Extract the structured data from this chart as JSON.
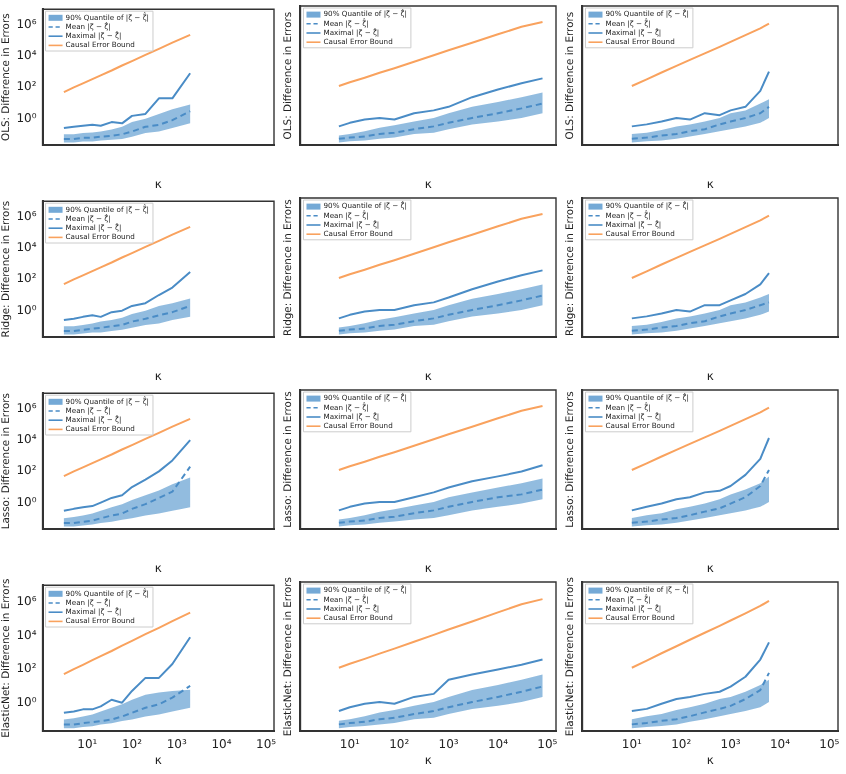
{
  "chart_data": [
    {
      "type": "line",
      "ylabel": "OLS: Difference in Errors",
      "xlabel": "κ",
      "log": "xy",
      "legend": "top left",
      "tick_labels": "y",
      "xlim": [
        1,
        150000
      ],
      "ylim": [
        0.02,
        10000000
      ],
      "xticks": [
        {
          "value": 10,
          "label": null
        },
        {
          "value": 100,
          "label": null
        },
        {
          "value": 1000,
          "label": null
        },
        {
          "value": 10000,
          "label": null
        },
        {
          "value": 100000,
          "label": null
        }
      ],
      "yticks": [
        {
          "value": 1,
          "label": "10⁰"
        },
        {
          "value": 100,
          "label": "10²"
        },
        {
          "value": 10000,
          "label": "10⁴"
        },
        {
          "value": 1000000,
          "label": "10⁶"
        }
      ],
      "x": [
        3,
        5,
        8,
        13,
        20,
        35,
        60,
        100,
        200,
        400,
        800,
        2000
      ],
      "series": [
        {
          "name": "90% Quantile of |ζ − ζ̂|",
          "color": "#74a9d6",
          "values": [
            null,
            null,
            null,
            null,
            null,
            null,
            null,
            null,
            null,
            null,
            null,
            null
          ],
          "lower": [
            0.03,
            0.03,
            0.035,
            0.035,
            0.04,
            0.045,
            0.05,
            0.07,
            0.12,
            0.15,
            0.25,
            0.5
          ],
          "upper": [
            0.1,
            0.1,
            0.12,
            0.13,
            0.15,
            0.2,
            0.3,
            0.6,
            1,
            2,
            4,
            8
          ]
        },
        {
          "name": "Mean |ζ − ζ̂|",
          "color": "#4a8cc6",
          "line_style": "dashed",
          "values": [
            0.05,
            0.05,
            0.06,
            0.06,
            0.07,
            0.08,
            0.1,
            0.15,
            0.3,
            0.4,
            0.8,
            3
          ]
        },
        {
          "name": "Maximal |ζ − ζ̂|",
          "color": "#4a8cc6",
          "values": [
            0.25,
            0.3,
            0.35,
            0.4,
            0.35,
            0.6,
            0.5,
            1.5,
            2,
            20,
            20,
            800
          ]
        },
        {
          "name": "Causal Error Bound",
          "color": "#f9a25e",
          "values": [
            50,
            100,
            180,
            340,
            590,
            1200,
            2500,
            4800,
            12000,
            29000,
            72000,
            230000
          ]
        }
      ]
    },
    {
      "type": "line",
      "ylabel": "OLS: Difference in Errors",
      "xlabel": "κ",
      "log": "xy",
      "legend": "top left",
      "tick_labels": false,
      "xlim": [
        1,
        150000
      ],
      "ylim": [
        0.02,
        10000000
      ],
      "xticks": [
        {
          "value": 10,
          "label": null
        },
        {
          "value": 100,
          "label": null
        },
        {
          "value": 1000,
          "label": null
        },
        {
          "value": 10000,
          "label": null
        },
        {
          "value": 100000,
          "label": null
        }
      ],
      "yticks": [
        {
          "value": 1,
          "label": null
        },
        {
          "value": 100,
          "label": null
        },
        {
          "value": 10000,
          "label": null
        },
        {
          "value": 1000000,
          "label": null
        }
      ],
      "x": [
        6,
        10,
        20,
        40,
        80,
        200,
        500,
        1000,
        3000,
        10000,
        30000,
        80000
      ],
      "series": [
        {
          "name": "90% Quantile of |ζ − ζ̂|",
          "color": "#74a9d6",
          "values": [
            null,
            null,
            null,
            null,
            null,
            null,
            null,
            null,
            null,
            null,
            null,
            null
          ],
          "lower": [
            0.03,
            0.035,
            0.04,
            0.05,
            0.06,
            0.1,
            0.12,
            0.2,
            0.4,
            0.6,
            1,
            2
          ],
          "upper": [
            0.08,
            0.1,
            0.15,
            0.25,
            0.35,
            0.6,
            1,
            2,
            5,
            10,
            20,
            40
          ]
        },
        {
          "name": "Mean |ζ − ζ̂|",
          "color": "#4a8cc6",
          "line_style": "dashed",
          "values": [
            0.05,
            0.06,
            0.07,
            0.1,
            0.12,
            0.2,
            0.3,
            0.5,
            1,
            2,
            4,
            8
          ]
        },
        {
          "name": "Maximal |ζ − ζ̂|",
          "color": "#4a8cc6",
          "values": [
            0.3,
            0.5,
            0.8,
            1,
            0.8,
            2,
            3,
            5,
            20,
            60,
            150,
            300
          ]
        },
        {
          "name": "Causal Error Bound",
          "color": "#f9a25e",
          "values": [
            100,
            170,
            330,
            670,
            1300,
            3300,
            8300,
            17000,
            50000,
            170000,
            500000,
            1000000
          ]
        }
      ]
    },
    {
      "type": "line",
      "ylabel": "OLS: Difference in Errors",
      "xlabel": "κ",
      "log": "xy",
      "legend": "top left",
      "tick_labels": false,
      "xlim": [
        1,
        150000
      ],
      "ylim": [
        0.02,
        10000000
      ],
      "xticks": [
        {
          "value": 10,
          "label": null
        },
        {
          "value": 100,
          "label": null
        },
        {
          "value": 1000,
          "label": null
        },
        {
          "value": 10000,
          "label": null
        },
        {
          "value": 100000,
          "label": null
        }
      ],
      "yticks": [
        {
          "value": 1,
          "label": null
        },
        {
          "value": 100,
          "label": null
        },
        {
          "value": 10000,
          "label": null
        },
        {
          "value": 1000000,
          "label": null
        }
      ],
      "x": [
        10,
        20,
        40,
        80,
        150,
        300,
        600,
        1000,
        2000,
        4000,
        6000
      ],
      "series": [
        {
          "name": "90% Quantile of |ζ − ζ̂|",
          "color": "#74a9d6",
          "values": [
            null,
            null,
            null,
            null,
            null,
            null,
            null,
            null,
            null,
            null,
            null
          ],
          "lower": [
            0.03,
            0.035,
            0.04,
            0.05,
            0.07,
            0.1,
            0.15,
            0.2,
            0.3,
            0.5,
            1
          ],
          "upper": [
            0.1,
            0.12,
            0.18,
            0.3,
            0.4,
            0.6,
            1,
            2,
            3,
            8,
            15
          ]
        },
        {
          "name": "Mean |ζ − ζ̂|",
          "color": "#4a8cc6",
          "line_style": "dashed",
          "values": [
            0.05,
            0.06,
            0.08,
            0.1,
            0.15,
            0.2,
            0.4,
            0.6,
            1,
            2,
            5
          ]
        },
        {
          "name": "Maximal |ζ − ζ̂|",
          "color": "#4a8cc6",
          "values": [
            0.3,
            0.4,
            0.6,
            1,
            0.8,
            2,
            1.5,
            3,
            5,
            50,
            800
          ]
        },
        {
          "name": "Causal Error Bound",
          "color": "#f9a25e",
          "values": [
            100,
            260,
            700,
            1800,
            4300,
            11000,
            28000,
            57000,
            150000,
            400000,
            800000
          ]
        }
      ]
    },
    {
      "type": "line",
      "ylabel": "Ridge: Difference in Errors",
      "xlabel": "κ",
      "log": "xy",
      "legend": "top left",
      "tick_labels": "y",
      "xlim": [
        1,
        150000
      ],
      "ylim": [
        0.02,
        10000000
      ],
      "xticks": [
        {
          "value": 10,
          "label": null
        },
        {
          "value": 100,
          "label": null
        },
        {
          "value": 1000,
          "label": null
        },
        {
          "value": 10000,
          "label": null
        },
        {
          "value": 100000,
          "label": null
        }
      ],
      "yticks": [
        {
          "value": 1,
          "label": "10⁰"
        },
        {
          "value": 100,
          "label": "10²"
        },
        {
          "value": 10000,
          "label": "10⁴"
        },
        {
          "value": 1000000,
          "label": "10⁶"
        }
      ],
      "x": [
        3,
        5,
        8,
        13,
        20,
        35,
        60,
        100,
        200,
        400,
        800,
        2000
      ],
      "series": [
        {
          "name": "90% Quantile of |ζ − ζ̂|",
          "color": "#74a9d6",
          "values": [
            null,
            null,
            null,
            null,
            null,
            null,
            null,
            null,
            null,
            null,
            null,
            null
          ],
          "lower": [
            0.03,
            0.03,
            0.035,
            0.04,
            0.04,
            0.05,
            0.06,
            0.08,
            0.12,
            0.15,
            0.25,
            0.4
          ],
          "upper": [
            0.1,
            0.1,
            0.12,
            0.15,
            0.2,
            0.25,
            0.35,
            0.6,
            1,
            2,
            3,
            6
          ]
        },
        {
          "name": "Mean |ζ − ζ̂|",
          "color": "#4a8cc6",
          "line_style": "dashed",
          "values": [
            0.05,
            0.05,
            0.06,
            0.07,
            0.08,
            0.1,
            0.12,
            0.2,
            0.3,
            0.5,
            0.8,
            2
          ]
        },
        {
          "name": "Maximal |ζ − ζ̂|",
          "color": "#4a8cc6",
          "values": [
            0.25,
            0.3,
            0.4,
            0.5,
            0.4,
            0.8,
            1,
            2,
            3,
            10,
            30,
            300
          ]
        },
        {
          "name": "Causal Error Bound",
          "color": "#f9a25e",
          "values": [
            50,
            100,
            180,
            340,
            590,
            1200,
            2500,
            4800,
            12000,
            29000,
            72000,
            230000
          ]
        }
      ]
    },
    {
      "type": "line",
      "ylabel": "Ridge: Difference in Errors",
      "xlabel": "κ",
      "log": "xy",
      "legend": "top left",
      "tick_labels": false,
      "xlim": [
        1,
        150000
      ],
      "ylim": [
        0.02,
        10000000
      ],
      "xticks": [
        {
          "value": 10,
          "label": null
        },
        {
          "value": 100,
          "label": null
        },
        {
          "value": 1000,
          "label": null
        },
        {
          "value": 10000,
          "label": null
        },
        {
          "value": 100000,
          "label": null
        }
      ],
      "yticks": [
        {
          "value": 1,
          "label": null
        },
        {
          "value": 100,
          "label": null
        },
        {
          "value": 10000,
          "label": null
        },
        {
          "value": 1000000,
          "label": null
        }
      ],
      "x": [
        6,
        10,
        20,
        40,
        80,
        200,
        500,
        1000,
        3000,
        10000,
        30000,
        80000
      ],
      "series": [
        {
          "name": "90% Quantile of |ζ − ζ̂|",
          "color": "#74a9d6",
          "values": [
            null,
            null,
            null,
            null,
            null,
            null,
            null,
            null,
            null,
            null,
            null,
            null
          ],
          "lower": [
            0.03,
            0.035,
            0.04,
            0.05,
            0.06,
            0.1,
            0.12,
            0.2,
            0.4,
            0.6,
            1,
            2
          ],
          "upper": [
            0.08,
            0.1,
            0.15,
            0.25,
            0.35,
            0.6,
            1,
            2,
            5,
            10,
            20,
            40
          ]
        },
        {
          "name": "Mean |ζ − ζ̂|",
          "color": "#4a8cc6",
          "line_style": "dashed",
          "values": [
            0.05,
            0.06,
            0.07,
            0.1,
            0.12,
            0.2,
            0.3,
            0.5,
            1,
            2,
            4,
            8
          ]
        },
        {
          "name": "Maximal |ζ − ζ̂|",
          "color": "#4a8cc6",
          "values": [
            0.3,
            0.5,
            0.8,
            1,
            1,
            2,
            3,
            6,
            20,
            60,
            150,
            300
          ]
        },
        {
          "name": "Causal Error Bound",
          "color": "#f9a25e",
          "values": [
            100,
            170,
            330,
            670,
            1300,
            3300,
            8300,
            17000,
            50000,
            170000,
            500000,
            1000000
          ]
        }
      ]
    },
    {
      "type": "line",
      "ylabel": "Ridge: Difference in Errors",
      "xlabel": "κ",
      "log": "xy",
      "legend": "top left",
      "tick_labels": false,
      "xlim": [
        1,
        150000
      ],
      "ylim": [
        0.02,
        10000000
      ],
      "xticks": [
        {
          "value": 10,
          "label": null
        },
        {
          "value": 100,
          "label": null
        },
        {
          "value": 1000,
          "label": null
        },
        {
          "value": 10000,
          "label": null
        },
        {
          "value": 100000,
          "label": null
        }
      ],
      "yticks": [
        {
          "value": 1,
          "label": null
        },
        {
          "value": 100,
          "label": null
        },
        {
          "value": 10000,
          "label": null
        },
        {
          "value": 1000000,
          "label": null
        }
      ],
      "x": [
        10,
        20,
        40,
        80,
        150,
        300,
        600,
        1000,
        2000,
        4000,
        6000
      ],
      "series": [
        {
          "name": "90% Quantile of |ζ − ζ̂|",
          "color": "#74a9d6",
          "values": [
            null,
            null,
            null,
            null,
            null,
            null,
            null,
            null,
            null,
            null,
            null
          ],
          "lower": [
            0.03,
            0.035,
            0.04,
            0.05,
            0.07,
            0.1,
            0.15,
            0.2,
            0.3,
            0.5,
            0.8
          ],
          "upper": [
            0.1,
            0.12,
            0.18,
            0.3,
            0.4,
            0.6,
            1,
            2,
            3,
            6,
            10
          ]
        },
        {
          "name": "Mean |ζ − ζ̂|",
          "color": "#4a8cc6",
          "line_style": "dashed",
          "values": [
            0.05,
            0.06,
            0.08,
            0.1,
            0.15,
            0.2,
            0.4,
            0.6,
            1,
            2,
            3
          ]
        },
        {
          "name": "Maximal |ζ − ζ̂|",
          "color": "#4a8cc6",
          "values": [
            0.3,
            0.4,
            0.6,
            1,
            0.8,
            2,
            2,
            4,
            10,
            40,
            200
          ]
        },
        {
          "name": "Causal Error Bound",
          "color": "#f9a25e",
          "values": [
            100,
            260,
            700,
            1800,
            4300,
            11000,
            28000,
            57000,
            150000,
            400000,
            800000
          ]
        }
      ]
    },
    {
      "type": "line",
      "ylabel": "Lasso: Difference in Errors",
      "xlabel": "κ",
      "log": "xy",
      "legend": "top left",
      "tick_labels": "y",
      "xlim": [
        1,
        150000
      ],
      "ylim": [
        0.02,
        10000000
      ],
      "xticks": [
        {
          "value": 10,
          "label": null
        },
        {
          "value": 100,
          "label": null
        },
        {
          "value": 1000,
          "label": null
        },
        {
          "value": 10000,
          "label": null
        },
        {
          "value": 100000,
          "label": null
        }
      ],
      "yticks": [
        {
          "value": 1,
          "label": "10⁰"
        },
        {
          "value": 100,
          "label": "10²"
        },
        {
          "value": 10000,
          "label": "10⁴"
        },
        {
          "value": 1000000,
          "label": "10⁶"
        }
      ],
      "x": [
        3,
        5,
        8,
        13,
        20,
        35,
        60,
        100,
        200,
        400,
        800,
        2000
      ],
      "series": [
        {
          "name": "90% Quantile of |ζ − ζ̂|",
          "color": "#74a9d6",
          "values": [
            null,
            null,
            null,
            null,
            null,
            null,
            null,
            null,
            null,
            null,
            null,
            null
          ],
          "lower": [
            0.03,
            0.03,
            0.035,
            0.04,
            0.05,
            0.06,
            0.08,
            0.1,
            0.15,
            0.2,
            0.3,
            0.5
          ],
          "upper": [
            0.1,
            0.12,
            0.15,
            0.2,
            0.3,
            0.5,
            0.8,
            1.5,
            3,
            6,
            15,
            40
          ]
        },
        {
          "name": "Mean |ζ − ζ̂|",
          "color": "#4a8cc6",
          "line_style": "dashed",
          "values": [
            0.05,
            0.05,
            0.06,
            0.07,
            0.1,
            0.15,
            0.2,
            0.4,
            0.8,
            2,
            5,
            200
          ]
        },
        {
          "name": "Maximal |ζ − ζ̂|",
          "color": "#4a8cc6",
          "values": [
            0.3,
            0.4,
            0.5,
            0.6,
            1,
            2,
            3,
            10,
            30,
            100,
            500,
            10000
          ]
        },
        {
          "name": "Causal Error Bound",
          "color": "#f9a25e",
          "values": [
            50,
            100,
            180,
            340,
            590,
            1200,
            2500,
            4800,
            12000,
            29000,
            72000,
            230000
          ]
        }
      ]
    },
    {
      "type": "line",
      "ylabel": "Lasso: Difference in Errors",
      "xlabel": "κ",
      "log": "xy",
      "legend": "top left",
      "tick_labels": false,
      "xlim": [
        1,
        150000
      ],
      "ylim": [
        0.02,
        10000000
      ],
      "xticks": [
        {
          "value": 10,
          "label": null
        },
        {
          "value": 100,
          "label": null
        },
        {
          "value": 1000,
          "label": null
        },
        {
          "value": 10000,
          "label": null
        },
        {
          "value": 100000,
          "label": null
        }
      ],
      "yticks": [
        {
          "value": 1,
          "label": null
        },
        {
          "value": 100,
          "label": null
        },
        {
          "value": 10000,
          "label": null
        },
        {
          "value": 1000000,
          "label": null
        }
      ],
      "x": [
        6,
        10,
        20,
        40,
        80,
        200,
        500,
        1000,
        3000,
        10000,
        30000,
        80000
      ],
      "series": [
        {
          "name": "90% Quantile of |ζ − ζ̂|",
          "color": "#74a9d6",
          "values": [
            null,
            null,
            null,
            null,
            null,
            null,
            null,
            null,
            null,
            null,
            null,
            null
          ],
          "lower": [
            0.03,
            0.035,
            0.04,
            0.05,
            0.06,
            0.08,
            0.1,
            0.15,
            0.3,
            0.5,
            0.8,
            1.5
          ],
          "upper": [
            0.08,
            0.1,
            0.15,
            0.25,
            0.35,
            0.6,
            1,
            2,
            4,
            8,
            15,
            30
          ]
        },
        {
          "name": "Mean |ζ − ζ̂|",
          "color": "#4a8cc6",
          "line_style": "dashed",
          "values": [
            0.05,
            0.06,
            0.07,
            0.1,
            0.12,
            0.2,
            0.3,
            0.5,
            1,
            2,
            3,
            6
          ]
        },
        {
          "name": "Maximal |ζ − ζ̂|",
          "color": "#4a8cc6",
          "values": [
            0.3,
            0.5,
            0.8,
            1,
            1,
            2,
            4,
            8,
            20,
            40,
            80,
            200
          ]
        },
        {
          "name": "Causal Error Bound",
          "color": "#f9a25e",
          "values": [
            100,
            170,
            330,
            670,
            1300,
            3300,
            8300,
            17000,
            50000,
            170000,
            500000,
            1000000
          ]
        }
      ]
    },
    {
      "type": "line",
      "ylabel": "Lasso: Difference in Errors",
      "xlabel": "κ",
      "log": "xy",
      "legend": "top left",
      "tick_labels": false,
      "xlim": [
        1,
        150000
      ],
      "ylim": [
        0.02,
        10000000
      ],
      "xticks": [
        {
          "value": 10,
          "label": null
        },
        {
          "value": 100,
          "label": null
        },
        {
          "value": 1000,
          "label": null
        },
        {
          "value": 10000,
          "label": null
        },
        {
          "value": 100000,
          "label": null
        }
      ],
      "yticks": [
        {
          "value": 1,
          "label": null
        },
        {
          "value": 100,
          "label": null
        },
        {
          "value": 10000,
          "label": null
        },
        {
          "value": 1000000,
          "label": null
        }
      ],
      "x": [
        10,
        20,
        40,
        80,
        150,
        300,
        600,
        1000,
        2000,
        4000,
        6000
      ],
      "series": [
        {
          "name": "90% Quantile of |ζ − ζ̂|",
          "color": "#74a9d6",
          "values": [
            null,
            null,
            null,
            null,
            null,
            null,
            null,
            null,
            null,
            null,
            null
          ],
          "lower": [
            0.03,
            0.035,
            0.04,
            0.05,
            0.07,
            0.1,
            0.15,
            0.2,
            0.3,
            0.5,
            1
          ],
          "upper": [
            0.1,
            0.15,
            0.2,
            0.35,
            0.5,
            0.8,
            1.5,
            3,
            6,
            15,
            40
          ]
        },
        {
          "name": "Mean |ζ − ζ̂|",
          "color": "#4a8cc6",
          "line_style": "dashed",
          "values": [
            0.05,
            0.06,
            0.08,
            0.1,
            0.15,
            0.25,
            0.4,
            0.8,
            2,
            10,
            100
          ]
        },
        {
          "name": "Maximal |ζ − ζ̂|",
          "color": "#4a8cc6",
          "values": [
            0.3,
            0.5,
            0.8,
            1.5,
            2,
            4,
            5,
            10,
            50,
            500,
            10000
          ]
        },
        {
          "name": "Causal Error Bound",
          "color": "#f9a25e",
          "values": [
            100,
            260,
            700,
            1800,
            4300,
            11000,
            28000,
            57000,
            150000,
            400000,
            800000
          ]
        }
      ]
    },
    {
      "type": "line",
      "ylabel": "ElasticNet: Difference in Errors",
      "xlabel": "κ",
      "log": "xy",
      "legend": "top left",
      "xlim": [
        1,
        150000
      ],
      "ylim": [
        0.02,
        10000000
      ],
      "xticks": [
        {
          "value": 10,
          "label": "10¹"
        },
        {
          "value": 100,
          "label": "10²"
        },
        {
          "value": 1000,
          "label": "10³"
        },
        {
          "value": 10000,
          "label": "10⁴"
        },
        {
          "value": 100000,
          "label": "10⁵"
        }
      ],
      "yticks": [
        {
          "value": 1,
          "label": "10⁰"
        },
        {
          "value": 100,
          "label": "10²"
        },
        {
          "value": 10000,
          "label": "10⁴"
        },
        {
          "value": 1000000,
          "label": "10⁶"
        }
      ],
      "x": [
        3,
        5,
        8,
        13,
        20,
        35,
        60,
        100,
        200,
        400,
        800,
        2000
      ],
      "series": [
        {
          "name": "90% Quantile of |ζ − ζ̂|",
          "color": "#74a9d6",
          "values": [
            null,
            null,
            null,
            null,
            null,
            null,
            null,
            null,
            null,
            null,
            null,
            null
          ],
          "lower": [
            0.03,
            0.03,
            0.035,
            0.04,
            0.05,
            0.06,
            0.08,
            0.1,
            0.15,
            0.2,
            0.3,
            0.5
          ],
          "upper": [
            0.1,
            0.12,
            0.15,
            0.2,
            0.3,
            0.5,
            0.8,
            1.5,
            3,
            4,
            5,
            6
          ]
        },
        {
          "name": "Mean |ζ − ζ̂|",
          "color": "#4a8cc6",
          "line_style": "dashed",
          "values": [
            0.05,
            0.05,
            0.06,
            0.07,
            0.08,
            0.1,
            0.15,
            0.25,
            0.5,
            0.8,
            2,
            10
          ]
        },
        {
          "name": "Maximal |ζ − ζ̂|",
          "color": "#4a8cc6",
          "values": [
            0.25,
            0.3,
            0.4,
            0.4,
            0.6,
            1.5,
            1,
            5,
            30,
            30,
            200,
            8000
          ]
        },
        {
          "name": "Causal Error Bound",
          "color": "#f9a25e",
          "values": [
            50,
            100,
            180,
            340,
            590,
            1200,
            2500,
            4800,
            12000,
            29000,
            72000,
            230000
          ]
        }
      ]
    },
    {
      "type": "line",
      "ylabel": "ElasticNet: Difference in Errors",
      "xlabel": "κ",
      "log": "xy",
      "legend": "top left",
      "tick_labels": "x",
      "xlim": [
        1,
        150000
      ],
      "ylim": [
        0.02,
        10000000
      ],
      "xticks": [
        {
          "value": 10,
          "label": "10¹"
        },
        {
          "value": 100,
          "label": "10²"
        },
        {
          "value": 1000,
          "label": "10³"
        },
        {
          "value": 10000,
          "label": "10⁴"
        },
        {
          "value": 100000,
          "label": "10⁵"
        }
      ],
      "yticks": [
        {
          "value": 1,
          "label": null
        },
        {
          "value": 100,
          "label": null
        },
        {
          "value": 10000,
          "label": null
        },
        {
          "value": 1000000,
          "label": null
        }
      ],
      "x": [
        6,
        10,
        20,
        40,
        80,
        200,
        500,
        1000,
        3000,
        10000,
        30000,
        80000
      ],
      "series": [
        {
          "name": "90% Quantile of |ζ − ζ̂|",
          "color": "#74a9d6",
          "values": [
            null,
            null,
            null,
            null,
            null,
            null,
            null,
            null,
            null,
            null,
            null,
            null
          ],
          "lower": [
            0.03,
            0.035,
            0.04,
            0.05,
            0.06,
            0.1,
            0.12,
            0.2,
            0.4,
            0.6,
            1,
            2
          ],
          "upper": [
            0.08,
            0.1,
            0.15,
            0.25,
            0.35,
            0.6,
            1,
            2,
            5,
            10,
            20,
            40
          ]
        },
        {
          "name": "Mean |ζ − ζ̂|",
          "color": "#4a8cc6",
          "line_style": "dashed",
          "values": [
            0.05,
            0.06,
            0.07,
            0.1,
            0.12,
            0.2,
            0.3,
            0.5,
            1,
            2,
            4,
            8
          ]
        },
        {
          "name": "Maximal |ζ − ζ̂|",
          "color": "#4a8cc6",
          "values": [
            0.3,
            0.5,
            0.8,
            1,
            0.8,
            2,
            3,
            20,
            40,
            80,
            150,
            300
          ]
        },
        {
          "name": "Causal Error Bound",
          "color": "#f9a25e",
          "values": [
            100,
            170,
            330,
            670,
            1300,
            3300,
            8300,
            17000,
            50000,
            170000,
            500000,
            1000000
          ]
        }
      ]
    },
    {
      "type": "line",
      "ylabel": "ElasticNet: Difference in Errors",
      "xlabel": "κ",
      "log": "xy",
      "legend": "top left",
      "tick_labels": "x",
      "xlim": [
        1,
        150000
      ],
      "ylim": [
        0.02,
        10000000
      ],
      "xticks": [
        {
          "value": 10,
          "label": "10¹"
        },
        {
          "value": 100,
          "label": "10²"
        },
        {
          "value": 1000,
          "label": "10³"
        },
        {
          "value": 10000,
          "label": "10⁴"
        },
        {
          "value": 100000,
          "label": "10⁵"
        }
      ],
      "yticks": [
        {
          "value": 1,
          "label": null
        },
        {
          "value": 100,
          "label": null
        },
        {
          "value": 10000,
          "label": null
        },
        {
          "value": 1000000,
          "label": null
        }
      ],
      "x": [
        10,
        20,
        40,
        80,
        150,
        300,
        600,
        1000,
        2000,
        4000,
        6000
      ],
      "series": [
        {
          "name": "90% Quantile of |ζ − ζ̂|",
          "color": "#74a9d6",
          "values": [
            null,
            null,
            null,
            null,
            null,
            null,
            null,
            null,
            null,
            null,
            null
          ],
          "lower": [
            0.03,
            0.035,
            0.04,
            0.05,
            0.07,
            0.1,
            0.15,
            0.2,
            0.3,
            0.5,
            1
          ],
          "upper": [
            0.1,
            0.15,
            0.2,
            0.35,
            0.5,
            0.8,
            1.5,
            2,
            4,
            10,
            20
          ]
        },
        {
          "name": "Mean |ζ − ζ̂|",
          "color": "#4a8cc6",
          "line_style": "dashed",
          "values": [
            0.05,
            0.06,
            0.08,
            0.1,
            0.15,
            0.25,
            0.4,
            0.6,
            1.5,
            5,
            50
          ]
        },
        {
          "name": "Maximal |ζ − ζ̂|",
          "color": "#4a8cc6",
          "values": [
            0.3,
            0.4,
            0.8,
            1.5,
            2,
            3,
            4,
            8,
            30,
            300,
            3000
          ]
        },
        {
          "name": "Causal Error Bound",
          "color": "#f9a25e",
          "values": [
            100,
            260,
            700,
            1800,
            4300,
            11000,
            28000,
            57000,
            150000,
            400000,
            800000
          ]
        }
      ]
    }
  ]
}
